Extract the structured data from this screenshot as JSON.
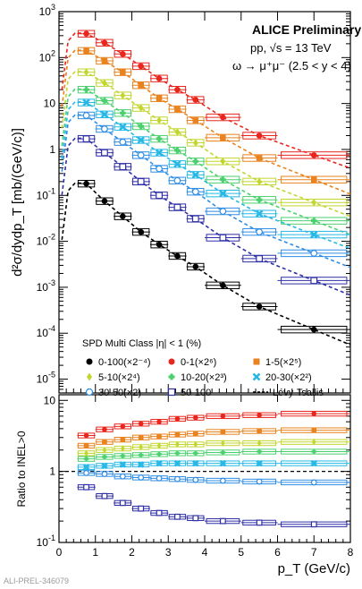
{
  "chart_data": [
    {
      "type": "scatter",
      "panel": "spectra",
      "title": "ALICE Preliminary",
      "subtitle_lines": [
        "pp, √s = 13 TeV",
        "ω → μ⁺μ⁻ (2.5 < y < 4)"
      ],
      "ylabel": "d²σ/dydp_T [mb/(GeV/c)]",
      "y_scale": "log",
      "xlim": [
        0,
        8
      ],
      "ylim": [
        5e-06,
        1000
      ],
      "legend_title": "SPD Multi Class |η| < 1 (%)",
      "legend_placement": "lower-left, inside",
      "fit_label": "Lévy-Tsallis",
      "x": [
        0.75,
        1.25,
        1.75,
        2.25,
        2.75,
        3.25,
        3.75,
        4.5,
        5.5,
        7.0
      ],
      "bin_half_widths": [
        0.25,
        0.25,
        0.25,
        0.25,
        0.25,
        0.25,
        0.25,
        0.5,
        0.5,
        1.0
      ],
      "series": [
        {
          "name": "0-100(×2⁻⁴)",
          "marker": "filled-circle",
          "color": "#000000",
          "values": [
            0.18,
            0.075,
            0.035,
            0.016,
            0.0085,
            0.0048,
            0.0028,
            0.0011,
            0.00038,
            0.00012
          ]
        },
        {
          "name": "0-1(×2⁶)",
          "marker": "filled-circle",
          "color": "#e8261e",
          "values": [
            330,
            210,
            120,
            65,
            35,
            20,
            12,
            5,
            2,
            0.75
          ]
        },
        {
          "name": "1-5(×2⁵)",
          "marker": "filled-square",
          "color": "#e8831f",
          "values": [
            140,
            85,
            48,
            25,
            13,
            7.5,
            4.3,
            1.8,
            0.65,
            0.22
          ]
        },
        {
          "name": "5-10(×2⁴)",
          "marker": "filled-diamond",
          "color": "#c2d62e",
          "values": [
            48,
            28,
            15,
            8,
            4.3,
            2.4,
            1.4,
            0.55,
            0.2,
            0.07
          ]
        },
        {
          "name": "10-20(×2³)",
          "marker": "filled-cross",
          "color": "#4cd06e",
          "values": [
            20,
            11.5,
            6.2,
            3.2,
            1.7,
            0.95,
            0.55,
            0.22,
            0.08,
            0.028
          ]
        },
        {
          "name": "20-30(×2²)",
          "marker": "x-cross",
          "color": "#27b8e6",
          "values": [
            10.5,
            5.8,
            3.1,
            1.6,
            0.85,
            0.48,
            0.28,
            0.11,
            0.04,
            0.014
          ]
        },
        {
          "name": "30-50(×2)",
          "marker": "open-circle",
          "color": "#2e8de5",
          "values": [
            5.5,
            2.8,
            1.45,
            0.75,
            0.38,
            0.21,
            0.12,
            0.045,
            0.016,
            0.0055
          ]
        },
        {
          "name": "50-100",
          "marker": "open-square",
          "color": "#2e2ea6",
          "values": [
            1.7,
            0.85,
            0.42,
            0.2,
            0.1,
            0.055,
            0.031,
            0.012,
            0.0042,
            0.0014
          ]
        }
      ]
    },
    {
      "type": "scatter",
      "panel": "ratio",
      "xlabel": "p_T (GeV/c)",
      "ylabel": "Ratio to INEL>0",
      "y_scale": "log",
      "xlim": [
        0,
        8
      ],
      "ylim": [
        0.1,
        12
      ],
      "reference_line": 1,
      "x": [
        0.75,
        1.25,
        1.75,
        2.25,
        2.75,
        3.25,
        3.75,
        4.5,
        5.5,
        7.0
      ],
      "series": [
        {
          "name": "0-1",
          "color": "#e8261e",
          "values": [
            3.2,
            3.9,
            4.3,
            4.7,
            5.0,
            5.5,
            5.7,
            6.0,
            6.2,
            6.5
          ]
        },
        {
          "name": "1-5",
          "color": "#e8831f",
          "values": [
            2.3,
            2.6,
            2.8,
            3.0,
            3.1,
            3.3,
            3.4,
            3.6,
            3.7,
            3.8
          ]
        },
        {
          "name": "5-10",
          "color": "#c2d62e",
          "values": [
            1.8,
            2.0,
            2.1,
            2.2,
            2.3,
            2.4,
            2.4,
            2.5,
            2.5,
            2.6
          ]
        },
        {
          "name": "10-20",
          "color": "#4cd06e",
          "values": [
            1.5,
            1.6,
            1.65,
            1.7,
            1.75,
            1.8,
            1.8,
            1.85,
            1.9,
            1.9
          ]
        },
        {
          "name": "20-30",
          "color": "#27b8e6",
          "values": [
            1.15,
            1.2,
            1.25,
            1.25,
            1.3,
            1.3,
            1.3,
            1.3,
            1.3,
            1.3
          ]
        },
        {
          "name": "30-50",
          "color": "#2e8de5",
          "values": [
            0.95,
            0.92,
            0.85,
            0.82,
            0.8,
            0.78,
            0.76,
            0.74,
            0.72,
            0.7
          ]
        },
        {
          "name": "50-100",
          "color": "#2e2ea6",
          "values": [
            0.6,
            0.45,
            0.36,
            0.3,
            0.26,
            0.23,
            0.22,
            0.2,
            0.19,
            0.18
          ]
        }
      ]
    }
  ],
  "footer_label": "ALI-PREL-346079"
}
